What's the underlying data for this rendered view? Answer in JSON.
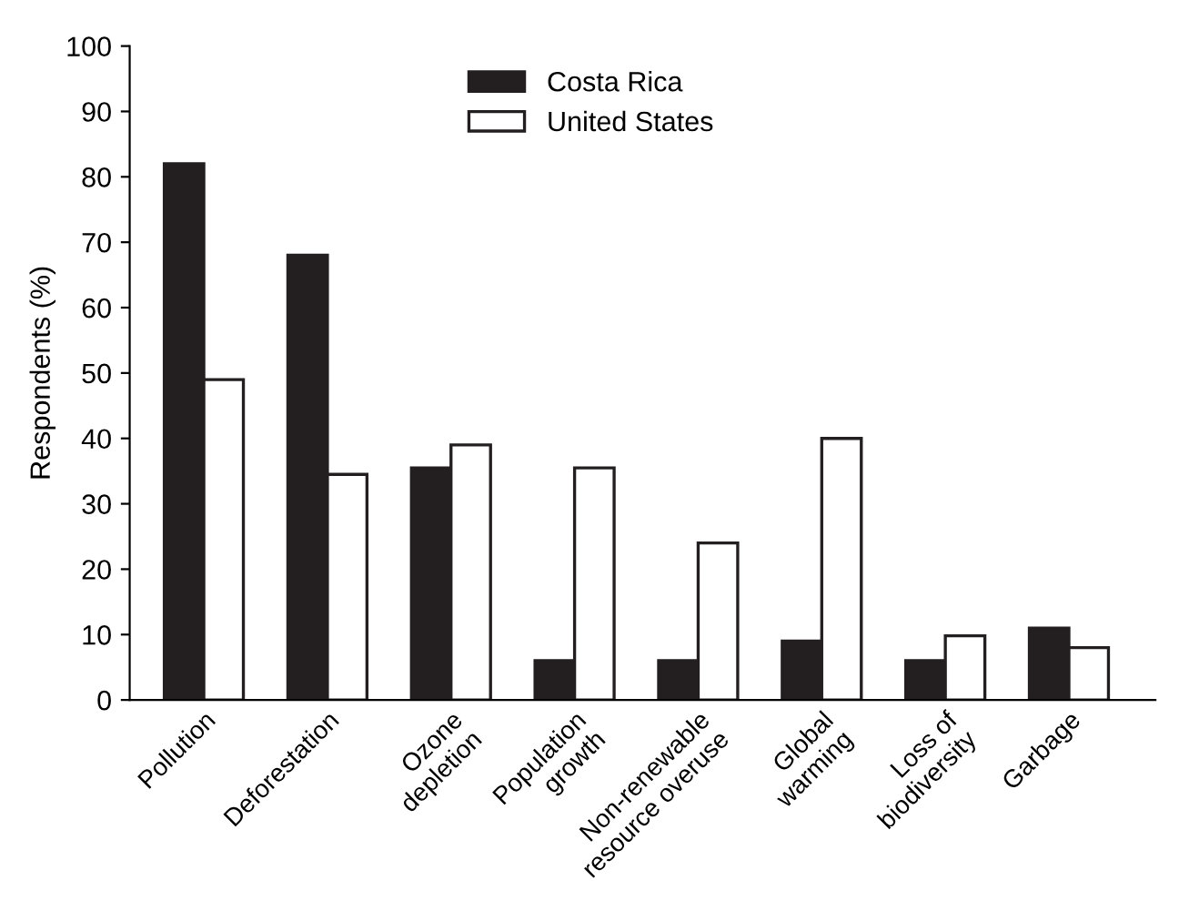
{
  "chart_data": {
    "type": "bar",
    "ylabel": "Respondents (%)",
    "categories": [
      "Pollution",
      "Deforestation",
      "Ozone\ndepletion",
      "Population\ngrowth",
      "Non-renewable\nresource overuse",
      "Global\nwarming",
      "Loss of\nbiodiversity",
      "Garbage"
    ],
    "series": [
      {
        "name": "Costa Rica",
        "color": "#231f20",
        "values": [
          82,
          68,
          35.5,
          6,
          6,
          9,
          6,
          11
        ]
      },
      {
        "name": "United States",
        "color": "#ffffff",
        "values": [
          49,
          34.5,
          39,
          35.5,
          24,
          40,
          9.8,
          8
        ]
      }
    ],
    "ylim": [
      0,
      100
    ],
    "yticks": [
      0,
      10,
      20,
      30,
      40,
      50,
      60,
      70,
      80,
      90,
      100
    ],
    "grid": false,
    "legend": "top"
  }
}
